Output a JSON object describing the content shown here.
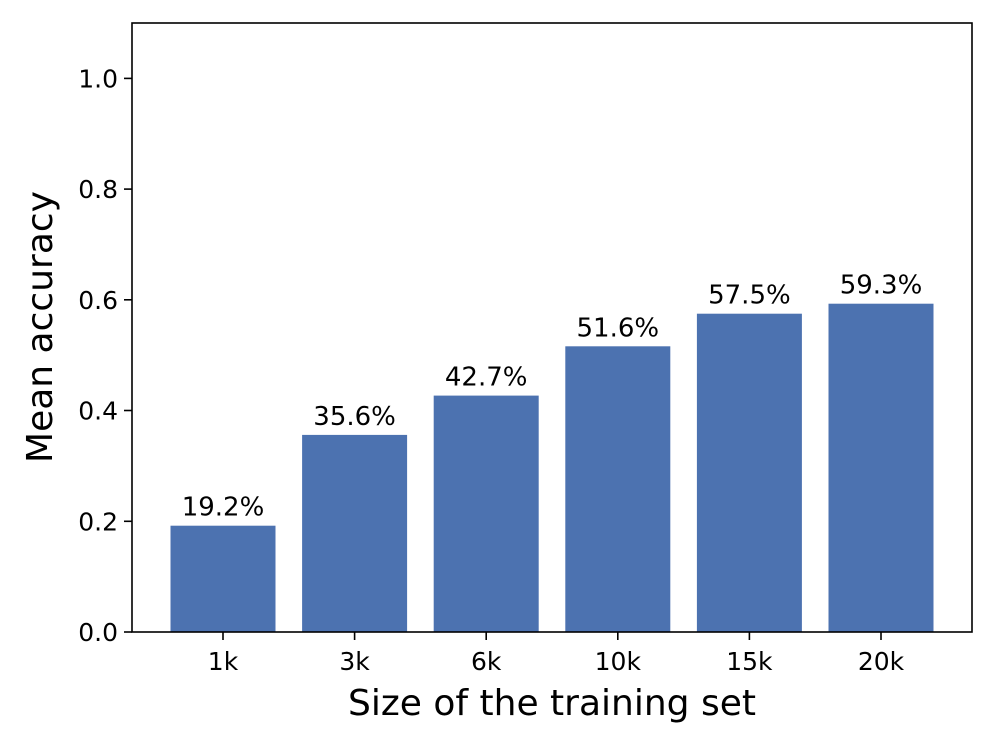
{
  "chart_data": {
    "type": "bar",
    "title": "",
    "xlabel": "Size of the training set",
    "ylabel": "Mean accuracy",
    "categories": [
      "1k",
      "3k",
      "6k",
      "10k",
      "15k",
      "20k"
    ],
    "values": [
      0.192,
      0.356,
      0.427,
      0.516,
      0.575,
      0.593
    ],
    "data_labels": [
      "19.2%",
      "35.6%",
      "42.7%",
      "51.6%",
      "57.5%",
      "59.3%"
    ],
    "ylim": [
      0,
      1.1
    ],
    "yticks": [
      0.0,
      0.2,
      0.4,
      0.6,
      0.8,
      1.0
    ],
    "ytick_labels": [
      "0.0",
      "0.2",
      "0.4",
      "0.6",
      "0.8",
      "1.0"
    ],
    "bar_color": "#4c72b0",
    "grid": false,
    "legend": "none"
  }
}
